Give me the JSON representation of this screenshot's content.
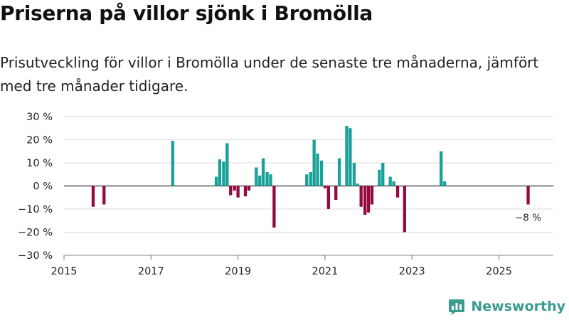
{
  "title": "Priserna på villor sjönk i Bromölla",
  "subtitle": "Prisutveckling för villor i Bromölla under de senaste tre månaderna, jämfört med tre månader tidigare.",
  "brand": {
    "name": "Newsworthy",
    "icon": "newsworthy-logo-icon",
    "color": "#3a9b8f"
  },
  "colors": {
    "positive": "#17a198",
    "negative": "#96093f",
    "zero_line": "#333333",
    "grid": "#dddddd"
  },
  "chart_data": {
    "type": "bar",
    "title": "Priserna på villor sjönk i Bromölla",
    "xlabel": "",
    "ylabel": "",
    "ylim": [
      -30,
      30
    ],
    "xlim": [
      2015,
      2026.25
    ],
    "y_ticks": [
      30,
      20,
      10,
      0,
      -10,
      -20,
      -30
    ],
    "y_tick_labels": [
      "30 %",
      "20 %",
      "10 %",
      "0 %",
      "−10 %",
      "−20 %",
      "−30 %"
    ],
    "x_ticks": [
      2015,
      2017,
      2019,
      2021,
      2023,
      2025
    ],
    "x_tick_labels": [
      "2015",
      "2017",
      "2019",
      "2021",
      "2023",
      "2025"
    ],
    "grid": true,
    "annotation": {
      "text": "−8 %",
      "x": 2025.67,
      "value": -8
    },
    "x": [
      2015.67,
      2015.92,
      2017.5,
      2018.5,
      2018.58,
      2018.67,
      2018.75,
      2018.83,
      2018.92,
      2019.0,
      2019.17,
      2019.25,
      2019.42,
      2019.5,
      2019.58,
      2019.67,
      2019.75,
      2019.83,
      2020.58,
      2020.67,
      2020.75,
      2020.83,
      2020.92,
      2021.0,
      2021.08,
      2021.25,
      2021.33,
      2021.5,
      2021.58,
      2021.67,
      2021.75,
      2021.83,
      2021.92,
      2022.0,
      2022.08,
      2022.25,
      2022.33,
      2022.5,
      2022.58,
      2022.67,
      2022.83,
      2023.67,
      2023.75,
      2025.67
    ],
    "values": [
      -9,
      -8,
      19.5,
      4,
      11.5,
      10.5,
      18.5,
      -4,
      -2,
      -5,
      -4.5,
      -2,
      8,
      4.5,
      12,
      6,
      5,
      -18,
      5,
      6,
      20,
      14,
      11,
      -1,
      -10,
      -6,
      12,
      26,
      25,
      10,
      1,
      -9,
      -12.5,
      -11.5,
      -8,
      7,
      10,
      4,
      2,
      -5,
      -20,
      15,
      2,
      -8
    ]
  }
}
